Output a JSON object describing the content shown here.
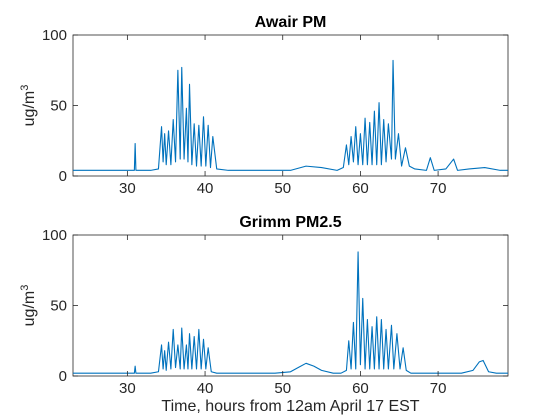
{
  "chart_data": [
    {
      "type": "line",
      "title": "Awair PM",
      "ylabel": "ug/m",
      "ylabel_superscript": "3",
      "xlabel": "",
      "xlim": [
        23,
        79
      ],
      "ylim": [
        0,
        100
      ],
      "xticks": [
        30,
        40,
        50,
        60,
        70
      ],
      "yticks": [
        0,
        50,
        100
      ],
      "grid": false,
      "legend": "none",
      "series_color": "#0072bd",
      "series": [
        {
          "x": [
            23,
            25,
            27,
            29,
            30.5,
            30.9,
            31.0,
            31.1,
            31.5,
            33,
            34.0,
            34.4,
            34.6,
            34.8,
            35.0,
            35.3,
            35.6,
            35.9,
            36.2,
            36.5,
            36.8,
            37.0,
            37.3,
            37.6,
            37.8,
            38.0,
            38.3,
            38.6,
            38.9,
            39.2,
            39.5,
            39.8,
            40.1,
            40.4,
            40.7,
            41.0,
            41.5,
            43,
            46,
            49,
            51,
            53,
            55,
            57,
            57.8,
            58.2,
            58.5,
            58.8,
            59.1,
            59.4,
            59.7,
            60.0,
            60.3,
            60.6,
            60.9,
            61.2,
            61.5,
            61.8,
            62.1,
            62.4,
            62.7,
            63.0,
            63.3,
            63.6,
            64.0,
            64.2,
            64.5,
            64.9,
            65.3,
            65.8,
            66.3,
            67,
            68.5,
            69,
            69.5,
            71,
            72,
            72.5,
            74,
            76,
            78,
            79
          ],
          "y": [
            4,
            4,
            4,
            4,
            4,
            4,
            23,
            4,
            4,
            4,
            5,
            35,
            10,
            30,
            8,
            32,
            8,
            40,
            10,
            75,
            12,
            77,
            12,
            48,
            10,
            65,
            8,
            37,
            7,
            36,
            7,
            42,
            7,
            36,
            6,
            28,
            5,
            4,
            4,
            4,
            4,
            7,
            6,
            4,
            6,
            22,
            8,
            28,
            10,
            35,
            8,
            30,
            8,
            41,
            8,
            38,
            8,
            46,
            8,
            52,
            8,
            40,
            10,
            37,
            12,
            82,
            12,
            30,
            7,
            20,
            7,
            5,
            4,
            13,
            4,
            5,
            12,
            4,
            5,
            6,
            4,
            4
          ]
        }
      ]
    },
    {
      "type": "line",
      "title": "Grimm PM2.5",
      "ylabel": "ug/m",
      "ylabel_superscript": "3",
      "xlabel": "Time, hours from 12am April 17 EST",
      "xlim": [
        23,
        79
      ],
      "ylim": [
        0,
        100
      ],
      "xticks": [
        30,
        40,
        50,
        60,
        70
      ],
      "yticks": [
        0,
        50,
        100
      ],
      "grid": false,
      "legend": "none",
      "series_color": "#0072bd",
      "series": [
        {
          "x": [
            23,
            26,
            29,
            30.9,
            31.0,
            31.1,
            33,
            34.0,
            34.4,
            34.6,
            34.8,
            35.0,
            35.3,
            35.6,
            35.9,
            36.2,
            36.5,
            36.8,
            37.0,
            37.3,
            37.6,
            37.8,
            38.0,
            38.3,
            38.6,
            38.9,
            39.2,
            39.5,
            39.8,
            40.1,
            40.4,
            40.8,
            41.5,
            45,
            49,
            51,
            52,
            53,
            54,
            55,
            56.5,
            57.5,
            58.2,
            58.5,
            58.8,
            59.1,
            59.4,
            59.7,
            60.0,
            60.3,
            60.6,
            60.9,
            61.2,
            61.5,
            61.8,
            62.1,
            62.4,
            62.7,
            63.0,
            63.3,
            63.6,
            64.0,
            64.3,
            64.7,
            65.1,
            65.5,
            65.9,
            66.5,
            68,
            71,
            73,
            74.5,
            75.3,
            75.8,
            76.5,
            77.5,
            79
          ],
          "y": [
            2,
            2,
            2,
            2,
            7,
            2,
            2,
            3,
            22,
            5,
            18,
            4,
            24,
            5,
            33,
            6,
            22,
            5,
            34,
            5,
            22,
            5,
            30,
            5,
            28,
            5,
            33,
            5,
            26,
            5,
            20,
            3,
            2,
            2,
            2,
            3,
            6,
            9,
            7,
            4,
            2,
            2,
            4,
            25,
            5,
            38,
            5,
            88,
            8,
            55,
            5,
            40,
            5,
            35,
            5,
            42,
            5,
            40,
            5,
            33,
            5,
            36,
            5,
            30,
            5,
            20,
            4,
            2,
            2,
            2,
            2,
            4,
            10,
            11,
            3,
            2,
            2
          ]
        }
      ]
    }
  ]
}
